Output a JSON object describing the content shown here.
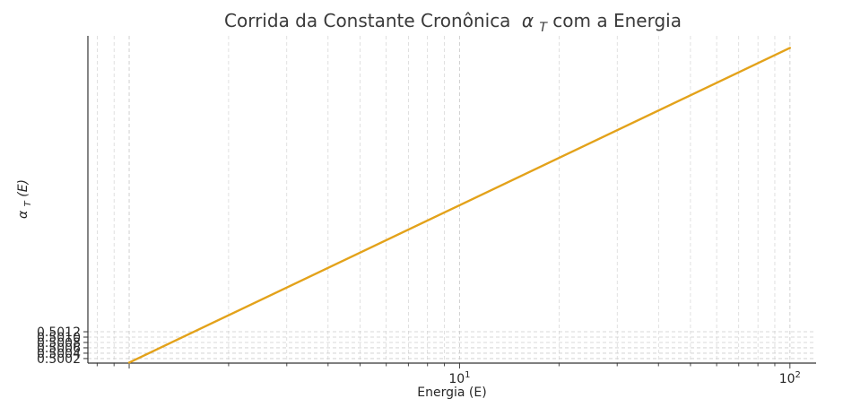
{
  "chart_data": {
    "type": "line",
    "title": "Corrida da Constante Cronônica",
    "title_symbol": "α",
    "title_symbol_sub": "T",
    "title_suffix": " com a Energia",
    "xlabel": "Energia (E)",
    "ylabel_symbol": "α",
    "ylabel_sub": "T",
    "ylabel_suffix": "(E)",
    "x_scale": "log",
    "xlim": [
      0.75,
      120
    ],
    "ylim": [
      0.50003,
      0.51224
    ],
    "y_ticks": [
      0.5002,
      0.5004,
      0.5006,
      0.5008,
      0.501,
      0.5012
    ],
    "y_tick_labels": [
      "0.5002",
      "0.5004",
      "0.5006",
      "0.5008",
      "0.5010",
      "0.5012"
    ],
    "x_ticks": [
      {
        "value": 10,
        "base": "10",
        "exp": "1"
      },
      {
        "value": 100,
        "base": "10",
        "exp": "2"
      }
    ],
    "grid": true,
    "colors": {
      "line": "#e3a21a",
      "grid": "#cccccc",
      "axis": "#333333"
    },
    "series": [
      {
        "x": [
          1,
          100
        ],
        "y": [
          0.50005,
          0.51179
        ]
      }
    ]
  }
}
